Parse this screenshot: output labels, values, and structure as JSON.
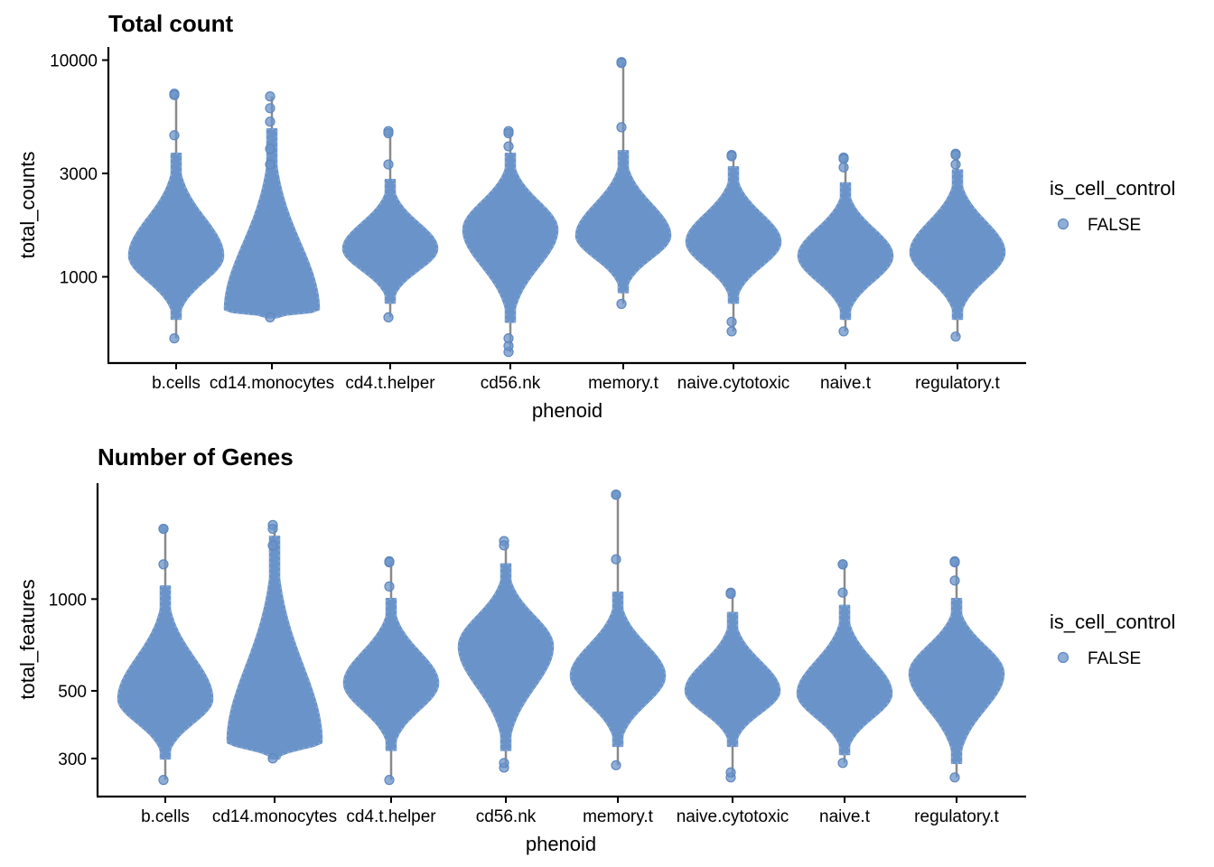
{
  "colors": {
    "point": "#6a93c9",
    "whisker": "#8a8a8a",
    "axis": "#000000"
  },
  "chart_data": [
    {
      "type": "violin",
      "title": "Total count",
      "xlabel": "phenoid",
      "ylabel": "total_counts",
      "yscale": "log10",
      "ylim": [
        400,
        11500
      ],
      "yticks": [
        1000,
        3000,
        10000
      ],
      "ytick_labels": [
        "1000",
        "3000",
        "10000"
      ],
      "categories": [
        "b.cells",
        "cd14.monocytes",
        "cd4.t.helper",
        "cd56.nk",
        "memory.t",
        "naive.cytotoxic",
        "naive.t",
        "regulatory.t"
      ],
      "legend": {
        "title": "is_cell_control",
        "entries": [
          "FALSE"
        ],
        "position": "right"
      },
      "grid": false,
      "series": [
        {
          "category": "b.cells",
          "max": 7000,
          "min": 520,
          "mode": 1250,
          "body_top": 3700,
          "body_bottom": 640,
          "extra_points": [
            4500,
            6900
          ]
        },
        {
          "category": "cd14.monocytes",
          "max": 6800,
          "min": 650,
          "mode": 700,
          "body_top": 4800,
          "body_bottom": 650,
          "extra_points": [
            3300,
            3900,
            5200,
            6000
          ]
        },
        {
          "category": "cd4.t.helper",
          "max": 4700,
          "min": 650,
          "mode": 1350,
          "body_top": 2800,
          "body_bottom": 760,
          "extra_points": [
            3300,
            4600
          ]
        },
        {
          "category": "cd56.nk",
          "max": 4700,
          "min": 450,
          "mode": 1650,
          "body_top": 3700,
          "body_bottom": 620,
          "extra_points": [
            4000,
            4600,
            480,
            520
          ]
        },
        {
          "category": "memory.t",
          "max": 9800,
          "min": 750,
          "mode": 1550,
          "body_top": 3800,
          "body_bottom": 850,
          "extra_points": [
            4900,
            9700
          ]
        },
        {
          "category": "naive.cytotoxic",
          "max": 3650,
          "min": 560,
          "mode": 1450,
          "body_top": 3200,
          "body_bottom": 760,
          "extra_points": [
            3600,
            620
          ]
        },
        {
          "category": "naive.t",
          "max": 3550,
          "min": 560,
          "mode": 1250,
          "body_top": 2700,
          "body_bottom": 640,
          "extra_points": [
            3200,
            3500
          ]
        },
        {
          "category": "regulatory.t",
          "max": 3700,
          "min": 530,
          "mode": 1300,
          "body_top": 3100,
          "body_bottom": 640,
          "extra_points": [
            3300,
            3650
          ]
        }
      ]
    },
    {
      "type": "violin",
      "title": "Number of Genes",
      "xlabel": "phenoid",
      "ylabel": "total_features",
      "yscale": "log10",
      "ylim": [
        225,
        2400
      ],
      "yticks": [
        300,
        500,
        1000
      ],
      "ytick_labels": [
        "300",
        "500",
        "1000"
      ],
      "categories": [
        "b.cells",
        "cd14.monocytes",
        "cd4.t.helper",
        "cd56.nk",
        "memory.t",
        "naive.cytotoxic",
        "naive.t",
        "regulatory.t"
      ],
      "legend": {
        "title": "is_cell_control",
        "entries": [
          "FALSE"
        ],
        "position": "right"
      },
      "grid": false,
      "series": [
        {
          "category": "b.cells",
          "max": 1700,
          "min": 255,
          "mode": 470,
          "body_top": 1100,
          "body_bottom": 300,
          "extra_points": [
            1300,
            1700
          ]
        },
        {
          "category": "cd14.monocytes",
          "max": 1750,
          "min": 300,
          "mode": 340,
          "body_top": 1600,
          "body_bottom": 300,
          "extra_points": [
            1500,
            1700
          ]
        },
        {
          "category": "cd4.t.helper",
          "max": 1330,
          "min": 255,
          "mode": 530,
          "body_top": 1000,
          "body_bottom": 320,
          "extra_points": [
            1100,
            1320
          ]
        },
        {
          "category": "cd56.nk",
          "max": 1550,
          "min": 280,
          "mode": 700,
          "body_top": 1300,
          "body_bottom": 320,
          "extra_points": [
            1500,
            290
          ]
        },
        {
          "category": "memory.t",
          "max": 2200,
          "min": 285,
          "mode": 560,
          "body_top": 1050,
          "body_bottom": 330,
          "extra_points": [
            1350,
            2200
          ]
        },
        {
          "category": "naive.cytotoxic",
          "max": 1050,
          "min": 260,
          "mode": 500,
          "body_top": 900,
          "body_bottom": 330,
          "extra_points": [
            1040,
            270
          ]
        },
        {
          "category": "naive.t",
          "max": 1300,
          "min": 290,
          "mode": 490,
          "body_top": 950,
          "body_bottom": 310,
          "extra_points": [
            1050,
            1300
          ]
        },
        {
          "category": "regulatory.t",
          "max": 1330,
          "min": 260,
          "mode": 570,
          "body_top": 1000,
          "body_bottom": 290,
          "extra_points": [
            1150,
            1320
          ]
        }
      ]
    }
  ]
}
